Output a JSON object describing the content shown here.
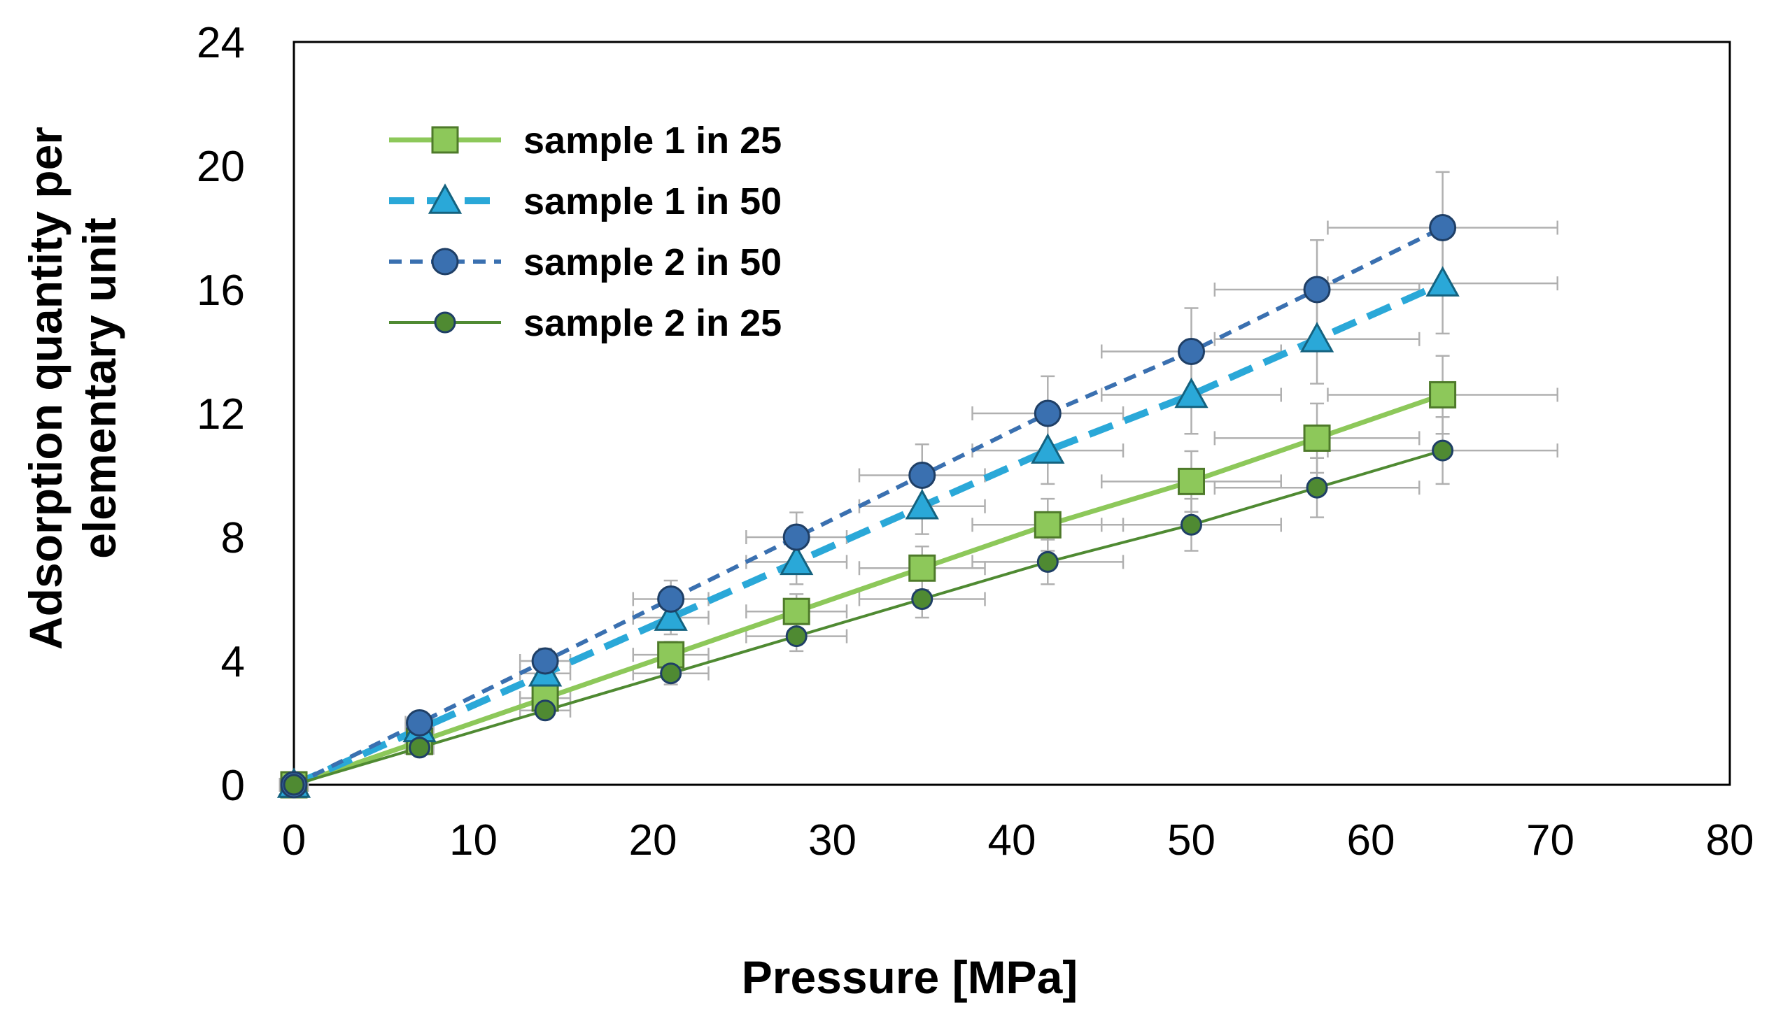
{
  "chart_data": {
    "type": "line",
    "title": "",
    "xlabel": "Pressure [MPa]",
    "ylabel_line1": "Adsorption quantity per",
    "ylabel_line2": "elementary unit",
    "xlim": [
      0,
      80
    ],
    "ylim": [
      0,
      24
    ],
    "x_ticks": [
      "0",
      "10",
      "20",
      "30",
      "40",
      "50",
      "60",
      "70",
      "80"
    ],
    "y_ticks": [
      "0",
      "4",
      "8",
      "12",
      "16",
      "20",
      "24"
    ],
    "grid": false,
    "legend_position": "top-left",
    "x": [
      0,
      7,
      14,
      21,
      28,
      35,
      42,
      50,
      57,
      64
    ],
    "series": [
      {
        "name": "sample 1 in 25",
        "color": "#8dc85a",
        "marker": "square",
        "dash": "solid",
        "values": [
          0,
          1.4,
          2.8,
          4.2,
          5.6,
          7.0,
          8.4,
          9.8,
          11.2,
          12.6
        ]
      },
      {
        "name": "sample 1 in 50",
        "color": "#2aa8d8",
        "marker": "triangle",
        "dash": "dashed",
        "values": [
          0,
          1.8,
          3.6,
          5.4,
          7.2,
          9.0,
          10.8,
          12.6,
          14.4,
          16.2
        ]
      },
      {
        "name": "sample 2 in 50",
        "color": "#3a70b0",
        "marker": "circle",
        "dash": "short-dashed",
        "values": [
          0,
          2.0,
          4.0,
          6.0,
          8.0,
          10.0,
          12.0,
          14.0,
          16.0,
          18.0
        ]
      },
      {
        "name": "sample 2 in 25",
        "color": "#4f8a32",
        "marker": "circle",
        "dash": "solid",
        "values": [
          0,
          1.2,
          2.4,
          3.6,
          4.8,
          6.0,
          7.2,
          8.4,
          9.6,
          10.8
        ]
      }
    ],
    "error_bars": {
      "color": "#b0b0b0",
      "x_error_fraction": 0.1,
      "y_error_fraction": 0.1
    }
  }
}
